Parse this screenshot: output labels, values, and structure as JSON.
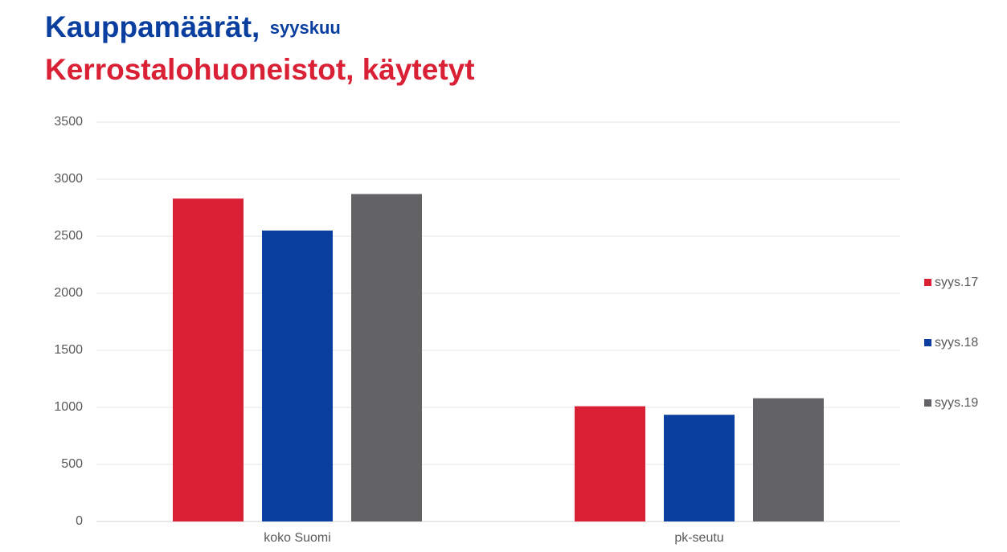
{
  "chart_data": {
    "type": "bar",
    "title": "Kauppamäärät,",
    "title_note": "syyskuu",
    "subtitle": "Kerrostalohuoneistot, käytetyt",
    "categories": [
      "koko Suomi",
      "pk-seutu"
    ],
    "series": [
      {
        "name": "syys.17",
        "color": "#d92035",
        "values": [
          2830,
          1010
        ]
      },
      {
        "name": "syys.18",
        "color": "#0a3fa0",
        "values": [
          2550,
          935
        ]
      },
      {
        "name": "syys.19",
        "color": "#636366",
        "values": [
          2870,
          1080
        ]
      }
    ],
    "ylim": [
      0,
      3500
    ],
    "yticks": [
      0,
      500,
      1000,
      1500,
      2000,
      2500,
      3000,
      3500
    ],
    "grid": true,
    "legend": "right"
  }
}
